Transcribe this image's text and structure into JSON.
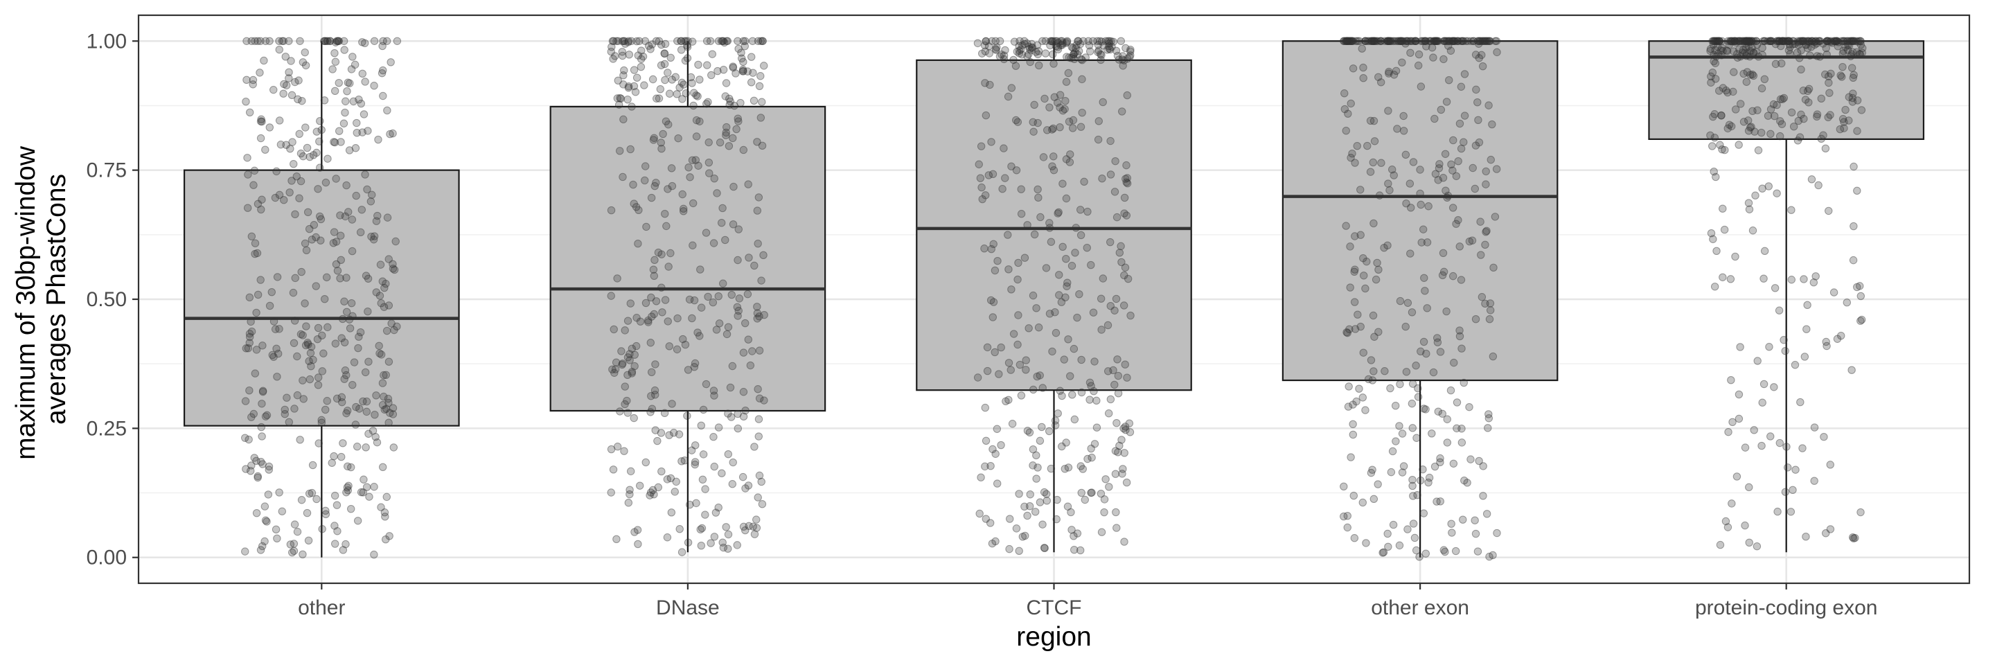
{
  "chart_data": {
    "type": "box",
    "title": "",
    "xlabel": "region",
    "ylabel_lines": [
      "maximum of 30bp-window",
      "averages PhastCons"
    ],
    "ylim": [
      -0.05,
      1.05
    ],
    "yticks": [
      0.0,
      0.25,
      0.5,
      0.75,
      1.0
    ],
    "ytick_labels": [
      "0.00",
      "0.25",
      "0.50",
      "0.75",
      "1.00"
    ],
    "grid": true,
    "theme": "bw",
    "box_fill": "#bebebe",
    "box_stroke": "#1a1a1a",
    "point_color": "#333333",
    "categories": [
      "other",
      "DNase",
      "CTCF",
      "other exon",
      "protein-coding exon"
    ],
    "boxes": [
      {
        "category": "other",
        "min": 0.0,
        "q1": 0.255,
        "median": 0.463,
        "q3": 0.75,
        "max": 1.0
      },
      {
        "category": "DNase",
        "min": 0.01,
        "q1": 0.284,
        "median": 0.52,
        "q3": 0.873,
        "max": 1.0
      },
      {
        "category": "CTCF",
        "min": 0.01,
        "q1": 0.324,
        "median": 0.637,
        "q3": 0.963,
        "max": 1.0
      },
      {
        "category": "other exon",
        "min": 0.0,
        "q1": 0.343,
        "median": 0.699,
        "q3": 1.0,
        "max": 1.0
      },
      {
        "category": "protein-coding exon",
        "min": 0.01,
        "q1": 0.81,
        "median": 0.969,
        "q3": 1.0,
        "max": 1.0
      }
    ]
  }
}
